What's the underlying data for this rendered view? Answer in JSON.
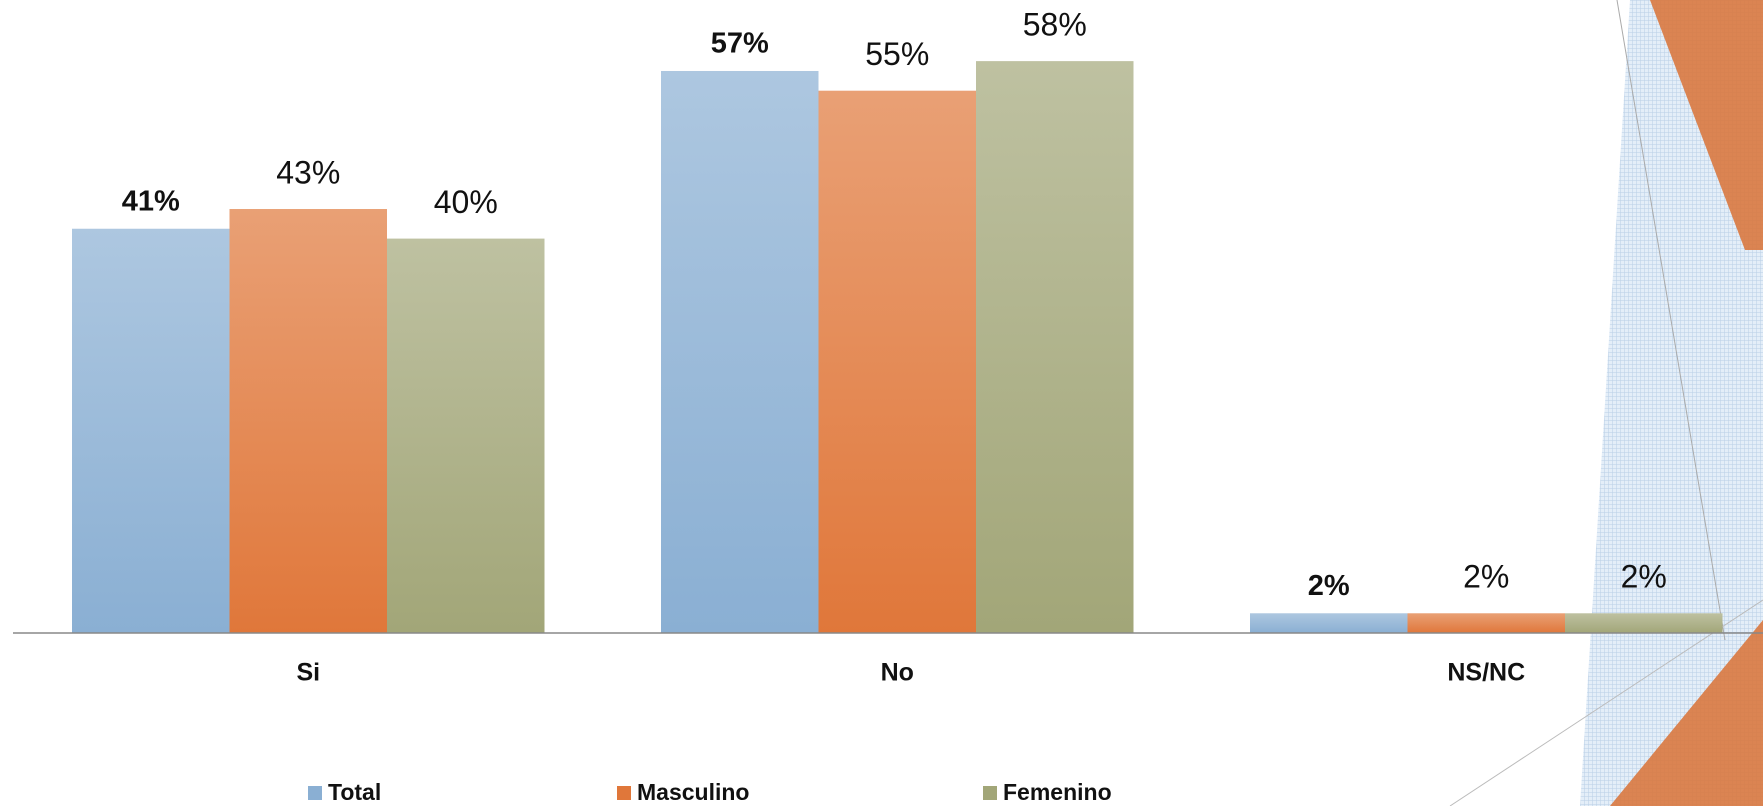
{
  "chart_data": {
    "type": "bar",
    "categories": [
      "Si",
      "No",
      "NS/NC"
    ],
    "series": [
      {
        "name": "Total",
        "color": "#8aafd3",
        "values": [
          41,
          57,
          2
        ],
        "value_labels": [
          "41%",
          "57%",
          "2%"
        ]
      },
      {
        "name": "Masculino",
        "color": "#e0773a",
        "values": [
          43,
          55,
          2
        ],
        "value_labels": [
          "43%",
          "55%",
          "2%"
        ]
      },
      {
        "name": "Femenino",
        "color": "#a2a678",
        "values": [
          40,
          58,
          2
        ],
        "value_labels": [
          "40%",
          "58%",
          "2%"
        ]
      }
    ]
  }
}
